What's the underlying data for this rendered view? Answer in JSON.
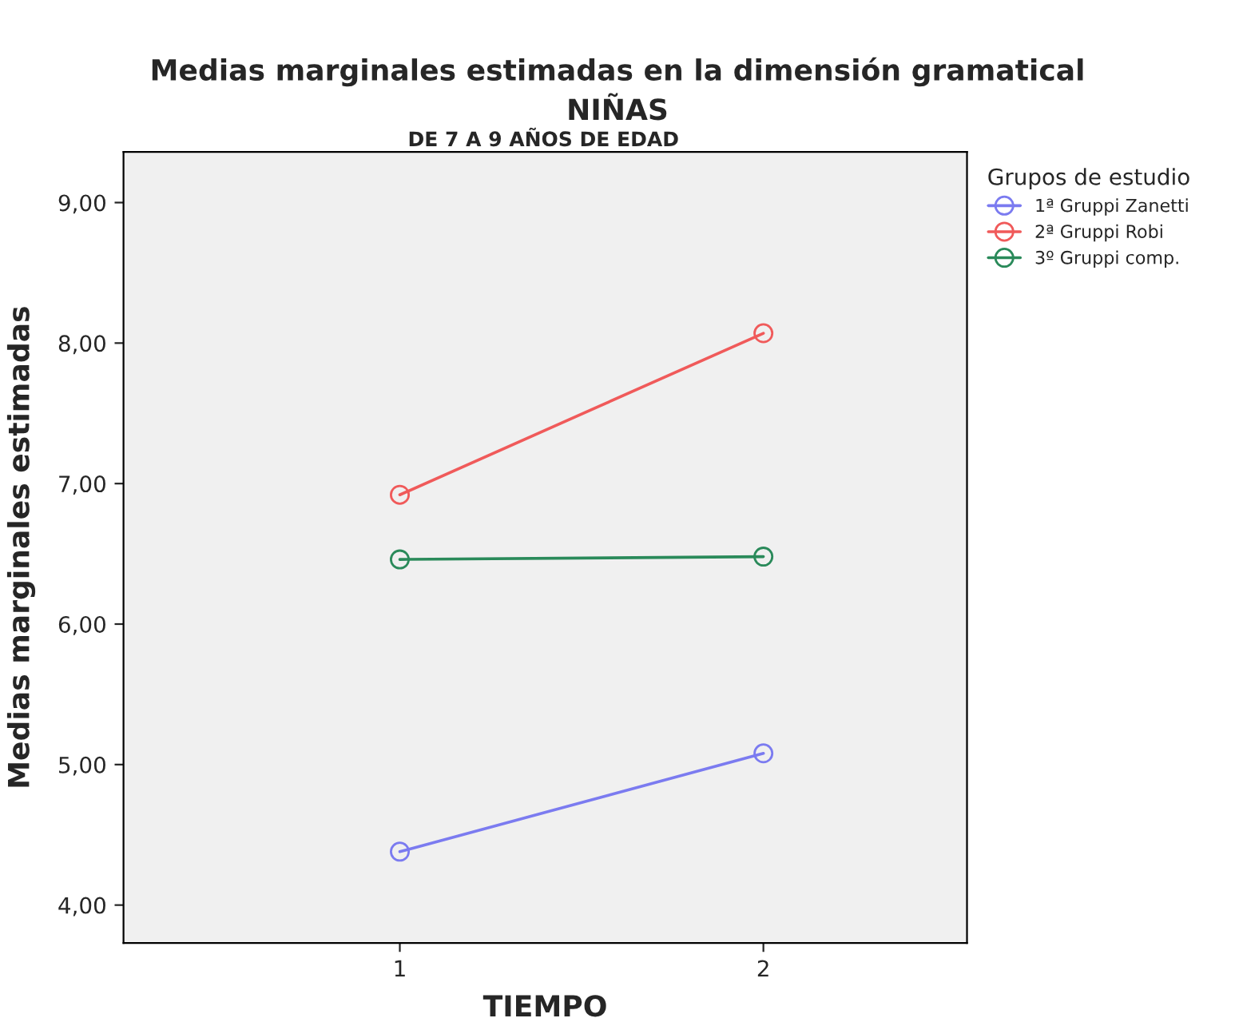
{
  "chart_data": {
    "type": "line",
    "title": "Medias marginales estimadas en la dimensión gramatical",
    "subtitle": "NIÑAS",
    "annotations": [
      "DE 7 A 9 AÑOS DE EDAD"
    ],
    "xlabel": "TIEMPO",
    "ylabel": "Medias marginales estimadas",
    "legend_title": "Grupos de estudio",
    "x": [
      1,
      2
    ],
    "series": [
      {
        "name": "1ª Gruppi Zanetti",
        "color": "#7b7bf0",
        "values": [
          4.38,
          5.08
        ]
      },
      {
        "name": "2ª Gruppi Robi",
        "color": "#f05a5a",
        "values": [
          6.92,
          8.07
        ]
      },
      {
        "name": "3º Gruppi comp.",
        "color": "#2a8a5a",
        "values": [
          6.46,
          6.48
        ]
      }
    ],
    "xlim": [
      0.24,
      2.56
    ],
    "xticks": [
      1,
      2
    ],
    "ylim": [
      3.73,
      9.36
    ],
    "yticks": [
      {
        "value": 4,
        "label": "4,00"
      },
      {
        "value": 5,
        "label": "5,00"
      },
      {
        "value": 6,
        "label": "6,00"
      },
      {
        "value": 7,
        "label": "7,00"
      },
      {
        "value": 8,
        "label": "8,00"
      },
      {
        "value": 9,
        "label": "9,00"
      }
    ],
    "marker": "circle",
    "grid": false,
    "legend": "top right"
  }
}
